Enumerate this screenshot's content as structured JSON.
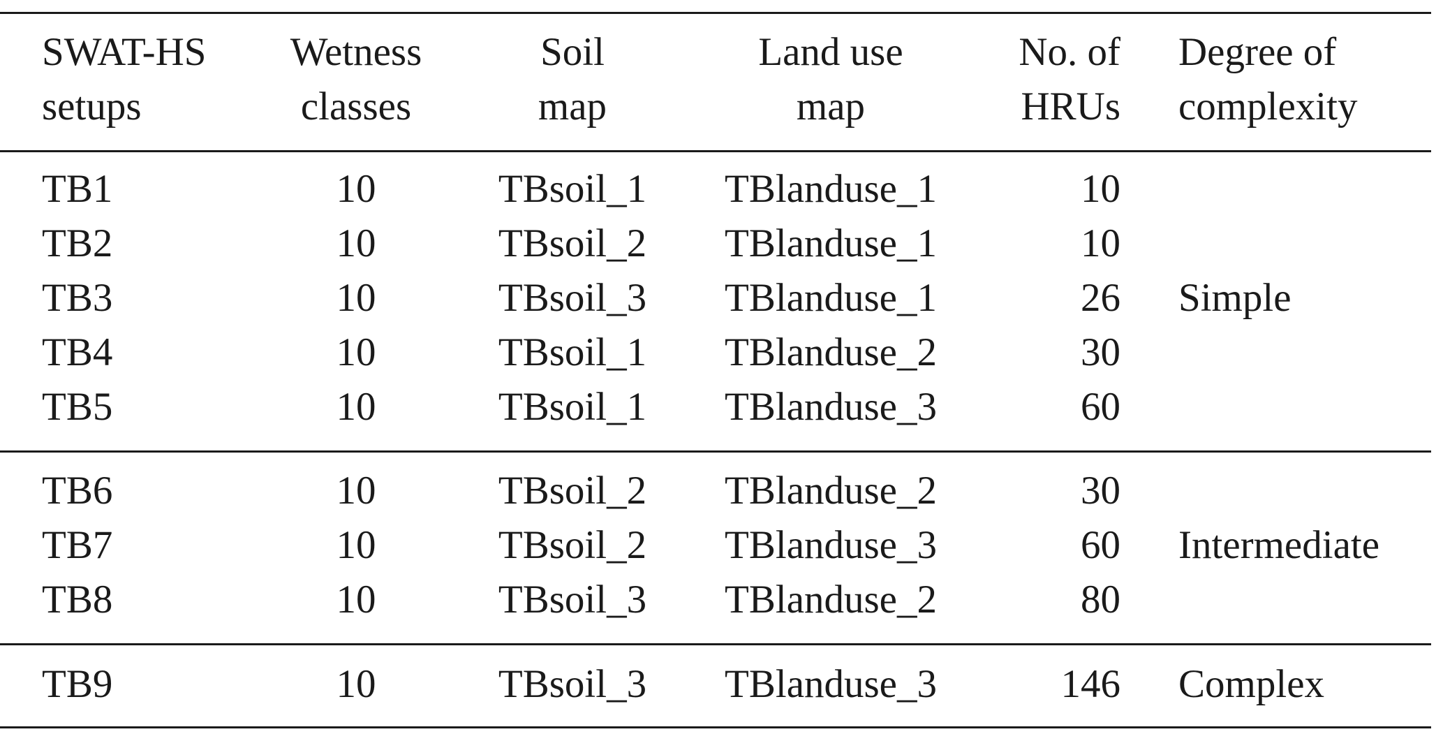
{
  "table": {
    "headers": [
      [
        "SWAT-HS",
        "setups"
      ],
      [
        "Wetness",
        "classes"
      ],
      [
        "Soil",
        "map"
      ],
      [
        "Land use",
        "map"
      ],
      [
        "No. of",
        "HRUs"
      ],
      [
        "Degree of",
        "complexity"
      ]
    ],
    "rows": [
      [
        "TB1",
        "10",
        "TBsoil_1",
        "TBlanduse_1",
        "10"
      ],
      [
        "TB2",
        "10",
        "TBsoil_2",
        "TBlanduse_1",
        "10"
      ],
      [
        "TB3",
        "10",
        "TBsoil_3",
        "TBlanduse_1",
        "26"
      ],
      [
        "TB4",
        "10",
        "TBsoil_1",
        "TBlanduse_2",
        "30"
      ],
      [
        "TB5",
        "10",
        "TBsoil_1",
        "TBlanduse_3",
        "60"
      ],
      [
        "TB6",
        "10",
        "TBsoil_2",
        "TBlanduse_2",
        "30"
      ],
      [
        "TB7",
        "10",
        "TBsoil_2",
        "TBlanduse_3",
        "60"
      ],
      [
        "TB8",
        "10",
        "TBsoil_3",
        "TBlanduse_2",
        "80"
      ],
      [
        "TB9",
        "10",
        "TBsoil_3",
        "TBlanduse_3",
        "146"
      ]
    ],
    "complexity_groups": [
      "Simple",
      "Intermediate",
      "Complex"
    ]
  }
}
